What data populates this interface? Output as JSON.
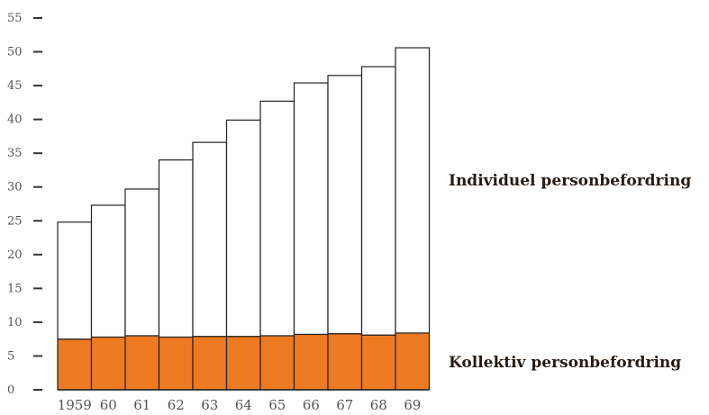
{
  "chart_data": {
    "type": "bar",
    "stacked": true,
    "categories": [
      "1959",
      "60",
      "61",
      "62",
      "63",
      "64",
      "65",
      "66",
      "67",
      "68",
      "69"
    ],
    "series": [
      {
        "name": "Kollektiv personbefordring",
        "values": [
          7.5,
          7.8,
          8.0,
          7.8,
          7.9,
          7.9,
          8.0,
          8.2,
          8.3,
          8.1,
          8.4
        ],
        "color": "#ee7a22"
      },
      {
        "name": "Individuel personbefordring",
        "values": [
          17.3,
          19.5,
          21.7,
          26.2,
          28.7,
          32.0,
          34.7,
          37.2,
          38.2,
          39.7,
          42.2
        ],
        "color": "#ffffff"
      }
    ],
    "yticks": [
      0,
      5,
      10,
      15,
      20,
      25,
      30,
      35,
      40,
      45,
      50,
      55
    ],
    "ylim": [
      0,
      55
    ],
    "grid": false,
    "legend_placement": "right"
  }
}
